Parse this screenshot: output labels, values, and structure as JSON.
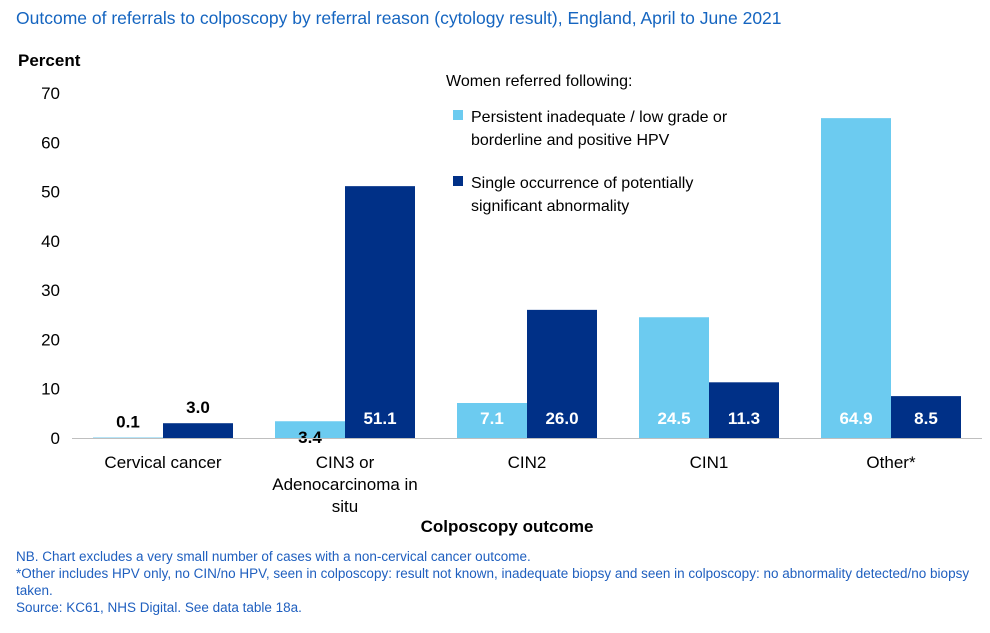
{
  "title": "Outcome of referrals to colposcopy by referral reason (cytology result), England,  April to June 2021",
  "notes": [
    "NB. Chart excludes a very small number of cases with a non-cervical cancer outcome.",
    "*Other includes HPV only, no CIN/no HPV, seen in colposcopy: result not known, inadequate biopsy and seen in colposcopy: no abnormality detected/no biopsy taken.",
    "Source: KC61, NHS Digital. See data table 18a."
  ],
  "chart_data": {
    "type": "bar",
    "title": "Outcome of referrals to colposcopy by referral reason (cytology result), England,  April to June 2021",
    "ylabel": "Percent",
    "xlabel": "Colposcopy outcome",
    "ylim": [
      0,
      70
    ],
    "yticks": [
      0,
      10,
      20,
      30,
      40,
      50,
      60,
      70
    ],
    "grid": false,
    "legend_title": "Women referred following:",
    "legend_position": "top-right",
    "categories": [
      [
        "Cervical cancer"
      ],
      [
        "CIN3 or",
        "Adenocarcinoma in",
        "situ"
      ],
      [
        "CIN2"
      ],
      [
        "CIN1"
      ],
      [
        "Other*"
      ]
    ],
    "series": [
      {
        "name": [
          "Persistent inadequate / low grade or",
          "borderline and positive HPV"
        ],
        "color": "#6ccbf0",
        "values": [
          0.1,
          3.4,
          7.1,
          24.5,
          64.9
        ],
        "labels": [
          "0.1",
          "3.4",
          "7.1",
          "24.5",
          "64.9"
        ]
      },
      {
        "name": [
          "Single occurrence of potentially",
          "significant abnormality"
        ],
        "color": "#003087",
        "values": [
          3.0,
          51.1,
          26.0,
          11.3,
          8.5
        ],
        "labels": [
          "3.0",
          "51.1",
          "26.0",
          "11.3",
          "8.5"
        ]
      }
    ]
  }
}
